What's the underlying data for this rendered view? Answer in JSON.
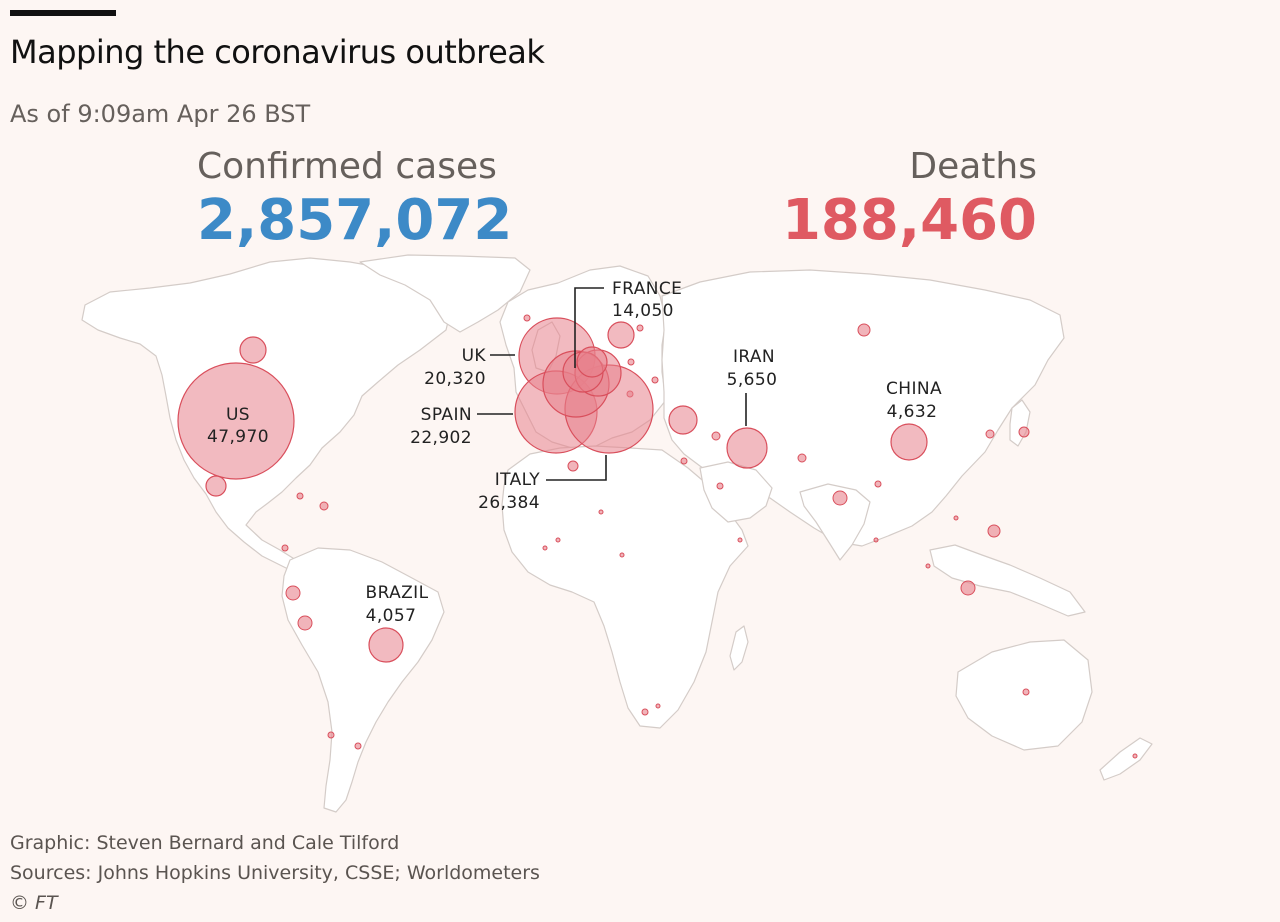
{
  "header": {
    "title": "Mapping the coronavirus outbreak",
    "subtitle": "As of 9:09am Apr 26 BST"
  },
  "stats": {
    "cases_label": "Confirmed cases",
    "cases_value": "2,857,072",
    "cases_color": "#3d8ac7",
    "deaths_label": "Deaths",
    "deaths_value": "188,460",
    "deaths_color": "#df5a62"
  },
  "map": {
    "bubble_fill": "#e8828c",
    "bubble_stroke": "#d94f5c",
    "labeled_countries": [
      {
        "name": "US",
        "deaths": "47,970"
      },
      {
        "name": "UK",
        "deaths": "20,320"
      },
      {
        "name": "SPAIN",
        "deaths": "22,902"
      },
      {
        "name": "FRANCE",
        "deaths": "14,050"
      },
      {
        "name": "ITALY",
        "deaths": "26,384"
      },
      {
        "name": "IRAN",
        "deaths": "5,650"
      },
      {
        "name": "CHINA",
        "deaths": "4,632"
      },
      {
        "name": "BRAZIL",
        "deaths": "4,057"
      }
    ]
  },
  "footer": {
    "credit": "Graphic: Steven Bernard and Cale Tilford",
    "sources": "Sources: Johns Hopkins University, CSSE; Worldometers",
    "copyright": "© FT"
  }
}
